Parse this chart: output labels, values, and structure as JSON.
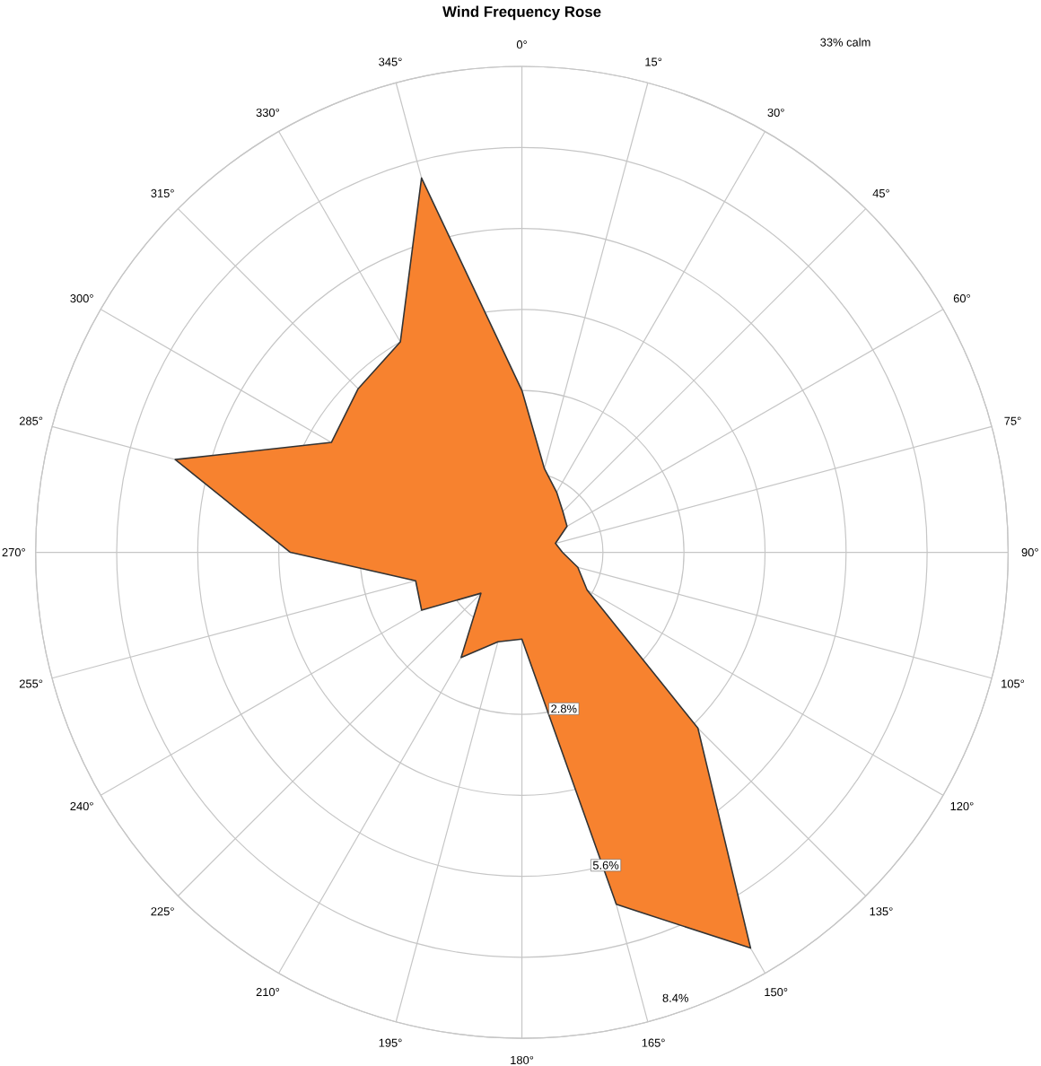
{
  "chart_data": {
    "type": "radar",
    "title": "Wind Frequency Rose",
    "categories": [
      "0°",
      "15°",
      "30°",
      "45°",
      "60°",
      "75°",
      "90°",
      "105°",
      "120°",
      "135°",
      "150°",
      "165°",
      "180°",
      "195°",
      "210°",
      "225°",
      "240°",
      "255°",
      "270°",
      "285°",
      "300°",
      "315°",
      "330°",
      "345°"
    ],
    "series": [
      {
        "color": "#f7822f",
        "values": [
          2.8,
          1.5,
          1.2,
          1.0,
          0.9,
          0.6,
          0.7,
          1.0,
          1.3,
          4.3,
          7.9,
          6.3,
          1.5,
          1.6,
          2.1,
          1.0,
          2.0,
          1.9,
          4.0,
          6.2,
          3.8,
          4.0,
          4.2,
          6.7
        ]
      }
    ],
    "ylim": [
      0,
      8.4
    ],
    "yticks": [
      {
        "value": 2.8,
        "label": "2.8%"
      },
      {
        "value": 5.6,
        "label": "5.6%"
      },
      {
        "value": 8.4,
        "label": "8.4%"
      }
    ],
    "grid": true,
    "annotations": [
      "33% calm"
    ]
  }
}
